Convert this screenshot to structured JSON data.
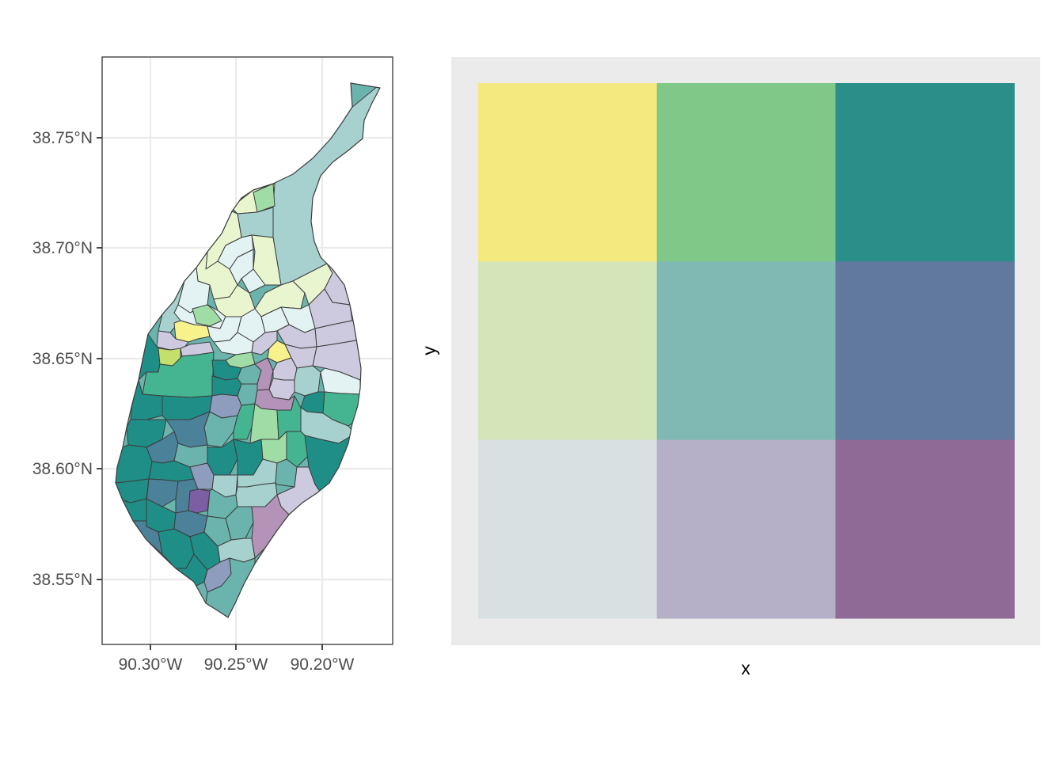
{
  "map": {
    "lat_labels": [
      "38.75°N",
      "38.70°N",
      "38.65°N",
      "38.60°N",
      "38.55°N"
    ],
    "lon_labels": [
      "90.30°W",
      "90.25°W",
      "90.20°W"
    ],
    "fill_palette": [
      "#a6d1cf",
      "#e9f5cf",
      "#cdc9de",
      "#e3f2f2",
      "#44b590",
      "#1f8e87",
      "#4b8199",
      "#6bb4ad",
      "#8e9cbd",
      "#b493b8",
      "#a0dda6",
      "#f8f28d",
      "#c4e06a",
      "#7c5ea4"
    ],
    "outline_color": "#3c3c3c"
  },
  "legend": {
    "xlabel": "x",
    "ylabel": "y",
    "panel_background": "#ebebeb",
    "grid_colors": [
      [
        "#f3e97e",
        "#80c887",
        "#2c8e88"
      ],
      [
        "#d3e5b9",
        "#80b9b3",
        "#61799c"
      ],
      [
        "#d8e0e2",
        "#b5b0c7",
        "#8f6a96"
      ]
    ]
  }
}
